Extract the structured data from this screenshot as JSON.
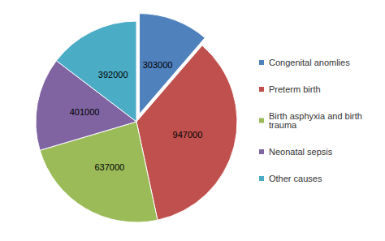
{
  "chart_data": {
    "type": "pie",
    "categories": [
      "Congenital anomlies",
      "Preterm birth",
      "Birth asphyxia and birth trauma",
      "Neonatal sepsis",
      "Other causes"
    ],
    "values": [
      303000,
      947000,
      637000,
      401000,
      392000
    ],
    "colors": [
      "#4F81BD",
      "#C0504D",
      "#9BBB59",
      "#8064A2",
      "#4BACC6"
    ],
    "data_labels": true,
    "legend": "right"
  }
}
